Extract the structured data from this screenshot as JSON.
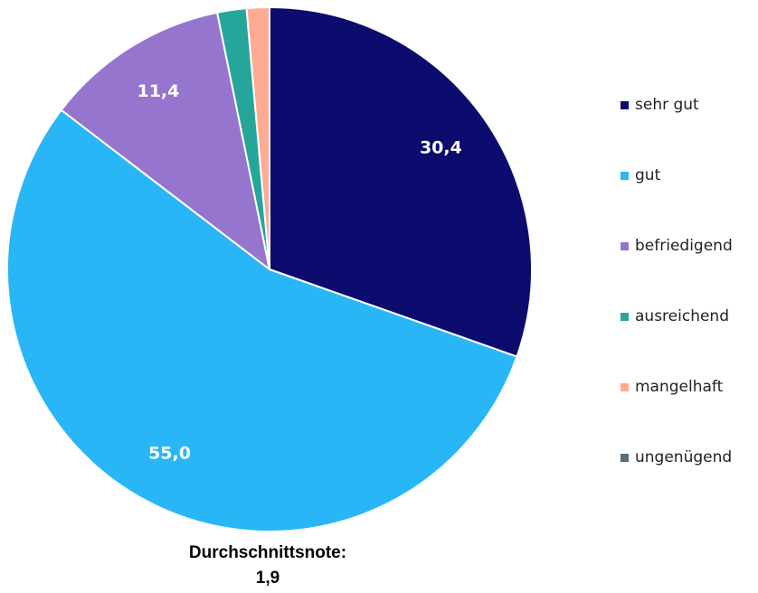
{
  "chart_data": {
    "type": "pie",
    "categories": [
      "sehr gut",
      "gut",
      "befriedigend",
      "ausreichend",
      "mangelhaft",
      "ungenügend"
    ],
    "values": [
      30.4,
      55.0,
      11.4,
      1.8,
      1.4,
      0
    ],
    "value_labels": [
      "30,4",
      "55,0",
      "11,4",
      null,
      null,
      null
    ],
    "colors": [
      "#0c0c6e",
      "#29b6f6",
      "#9575cd",
      "#26a69a",
      "#ffab91",
      "#546e7a"
    ],
    "annotation": [
      "Durchschnittsnote:",
      "1,9"
    ],
    "legend": "right"
  }
}
